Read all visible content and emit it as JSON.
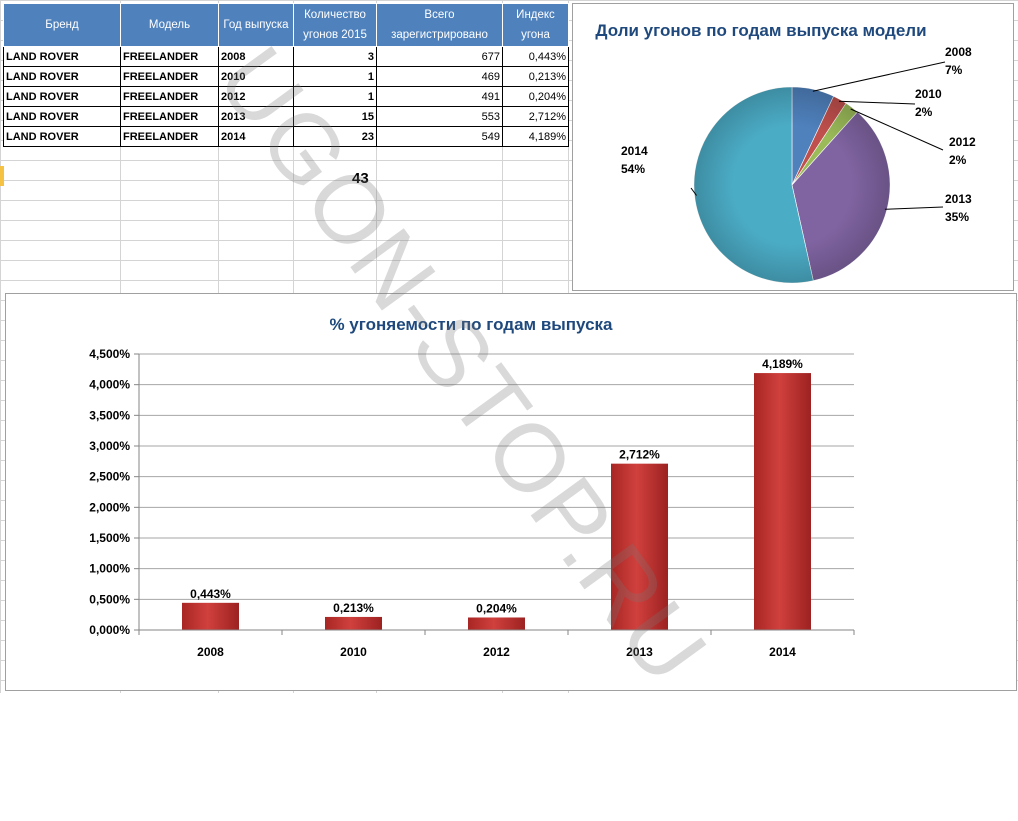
{
  "table": {
    "headers": [
      "Бренд",
      "Модель",
      "Год выпуска",
      "Количество угонов 2015",
      "Всего зарегистрировано",
      "Индекс угона"
    ],
    "rows": [
      [
        "LAND ROVER",
        "FREELANDER",
        "2008",
        "3",
        "677",
        "0,443%"
      ],
      [
        "LAND ROVER",
        "FREELANDER",
        "2010",
        "1",
        "469",
        "0,213%"
      ],
      [
        "LAND ROVER",
        "FREELANDER",
        "2012",
        "1",
        "491",
        "0,204%"
      ],
      [
        "LAND ROVER",
        "FREELANDER",
        "2013",
        "15",
        "553",
        "2,712%"
      ],
      [
        "LAND ROVER",
        "FREELANDER",
        "2014",
        "23",
        "549",
        "4,189%"
      ]
    ],
    "total": "43"
  },
  "watermark": "UGON-STOP.RU",
  "colors": {
    "header_bg": "#4f81bd",
    "title": "#1f497d",
    "bar": "#c0302e",
    "pie": [
      "#4f81bd",
      "#c0504d",
      "#9bbb59",
      "#8064a2",
      "#4bacc6"
    ]
  },
  "chart_data": [
    {
      "type": "pie",
      "title": "Доли угонов  по годам  выпуска модели",
      "categories": [
        "2008",
        "2010",
        "2012",
        "2013",
        "2014"
      ],
      "values": [
        3,
        1,
        1,
        15,
        23
      ],
      "labels": [
        "7%",
        "2%",
        "2%",
        "35%",
        "54%"
      ]
    },
    {
      "type": "bar",
      "title": "% угоняемости  по годам  выпуска",
      "categories": [
        "2008",
        "2010",
        "2012",
        "2013",
        "2014"
      ],
      "values": [
        0.443,
        0.213,
        0.204,
        2.712,
        4.189
      ],
      "data_labels": [
        "0,443%",
        "0,213%",
        "0,204%",
        "2,712%",
        "4,189%"
      ],
      "ylim": [
        0,
        4.5
      ],
      "yticks": [
        "0,000%",
        "0,500%",
        "1,000%",
        "1,500%",
        "2,000%",
        "2,500%",
        "3,000%",
        "3,500%",
        "4,000%",
        "4,500%"
      ],
      "xlabel": "",
      "ylabel": "",
      "grid": true
    }
  ]
}
